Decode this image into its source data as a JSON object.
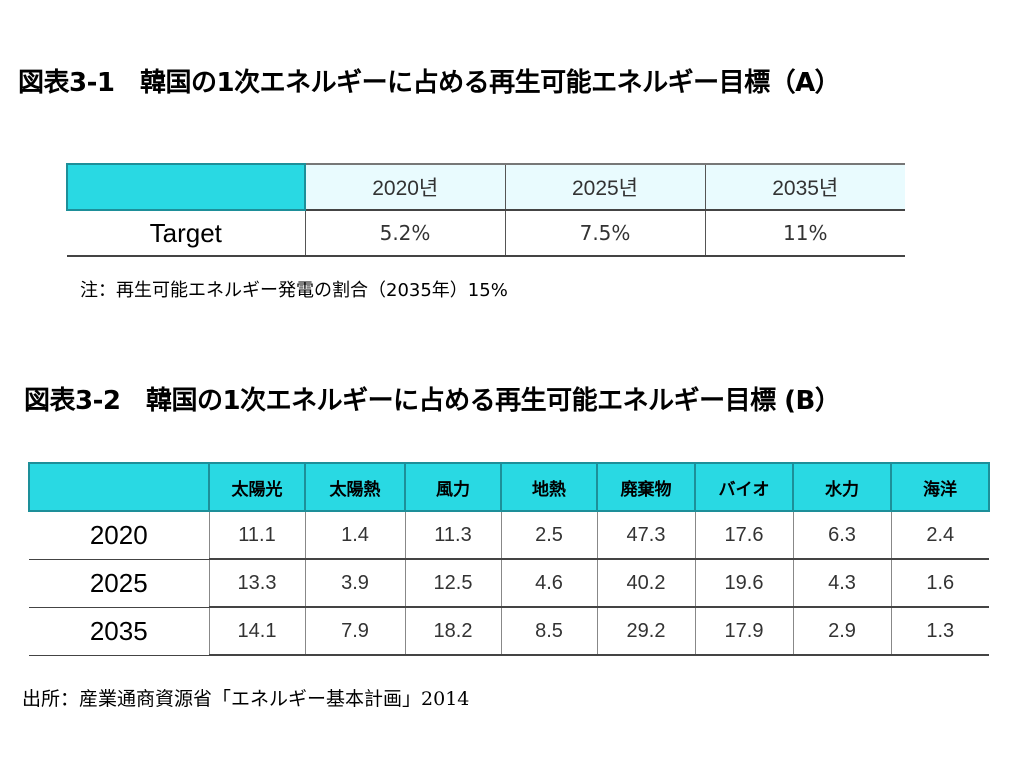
{
  "title_a": "図表3-1　韓国の1次エネルギーに占める再生可能エネルギー目標（A）",
  "table_a": {
    "columns": [
      "2020년",
      "2025년",
      "2035년"
    ],
    "row_label": "Target",
    "values": [
      "5.2%",
      "7.5%",
      "11%"
    ]
  },
  "note_a": "注：再生可能エネルギー発電の割合（2035年）15%",
  "title_b": "図表3-2　韓国の1次エネルギーに占める再生可能エネルギー目標 (B）",
  "table_b": {
    "columns": [
      "太陽光",
      "太陽熱",
      "風力",
      "地熱",
      "廃棄物",
      "バイオ",
      "水力",
      "海洋"
    ],
    "rows": [
      {
        "year": "2020",
        "values": [
          "11.1",
          "1.4",
          "11.3",
          "2.5",
          "47.3",
          "17.6",
          "6.3",
          "2.4"
        ]
      },
      {
        "year": "2025",
        "values": [
          "13.3",
          "3.9",
          "12.5",
          "4.6",
          "40.2",
          "19.6",
          "4.3",
          "1.6"
        ]
      },
      {
        "year": "2035",
        "values": [
          "14.1",
          "7.9",
          "18.2",
          "8.5",
          "29.2",
          "17.9",
          "2.9",
          "1.3"
        ]
      }
    ]
  },
  "source": {
    "text": "出所：産業通商資源省「エネルギー基本計画」",
    "year": "2014"
  },
  "colors": {
    "header_fill": "#29d9e3",
    "header_light": "#e9fbfe"
  }
}
